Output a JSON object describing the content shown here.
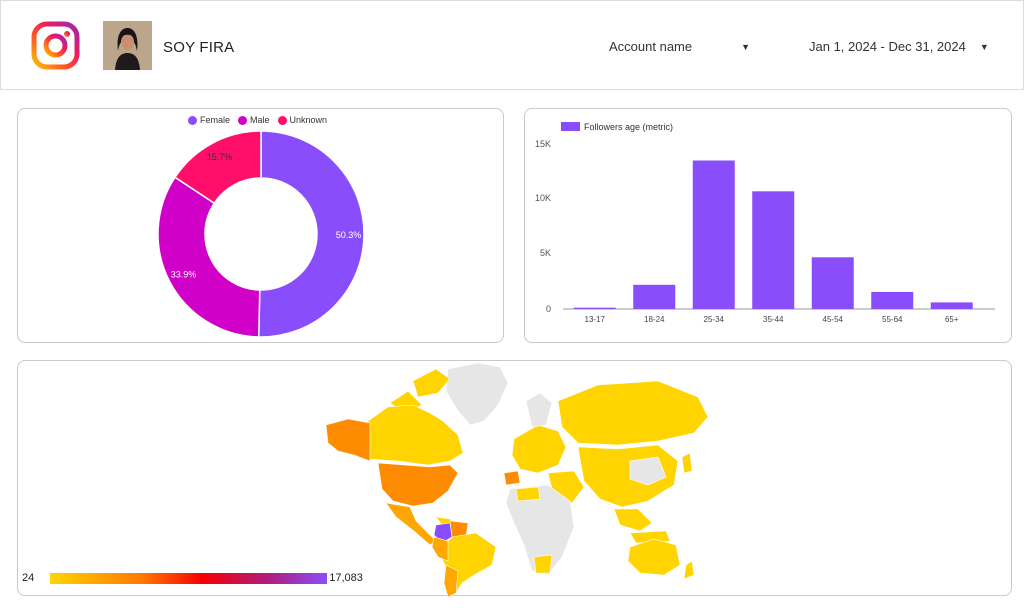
{
  "header": {
    "account_title": "SOY FIRA",
    "account_selector_label": "Account name",
    "date_range_label": "Jan 1, 2024 - Dec 31, 2024"
  },
  "gender_chart": {
    "legend": [
      "Female",
      "Male",
      "Unknown"
    ],
    "labels": [
      "50.3%",
      "33.9%",
      "15.7%"
    ]
  },
  "age_chart": {
    "legend": "Followers age (metric)",
    "y_ticks": [
      "15K",
      "10K",
      "5K",
      "0"
    ]
  },
  "map_legend": {
    "min": "24",
    "max": "17,083"
  },
  "colors": {
    "female": "#8a4dfb",
    "male": "#d000c8",
    "unknown": "#ff0f6a",
    "bar": "#8a4dfb",
    "map_low": "#ffd400",
    "map_mid": "#ff8c00",
    "map_high": "#8a4dfb",
    "map_none": "#e6e6e6"
  },
  "icons": {
    "logo": "instagram-icon",
    "dropdown": "caret-down-icon"
  },
  "chart_data": [
    {
      "type": "pie",
      "categories": [
        "Female",
        "Male",
        "Unknown"
      ],
      "values": [
        50.3,
        33.9,
        15.7
      ],
      "legend": "top"
    },
    {
      "type": "bar",
      "categories": [
        "13-17",
        "18-24",
        "25-34",
        "35-44",
        "45-54",
        "55-64",
        "65+"
      ],
      "series": [
        {
          "name": "Followers age (metric)",
          "values": [
            120,
            2200,
            13500,
            10700,
            4700,
            1550,
            600
          ]
        }
      ],
      "ylim": [
        0,
        15000
      ],
      "legend": "top-left",
      "grid": false
    }
  ]
}
